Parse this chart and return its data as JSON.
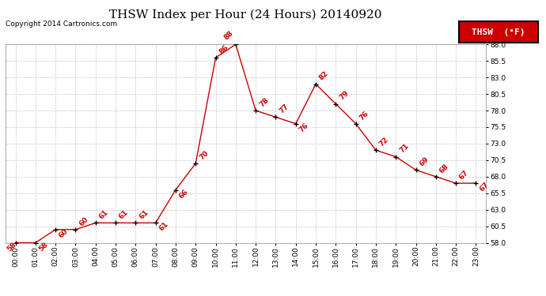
{
  "title": "THSW Index per Hour (24 Hours) 20140920",
  "copyright": "Copyright 2014 Cartronics.com",
  "legend_label": "THSW  (°F)",
  "hours": [
    0,
    1,
    2,
    3,
    4,
    5,
    6,
    7,
    8,
    9,
    10,
    11,
    12,
    13,
    14,
    15,
    16,
    17,
    18,
    19,
    20,
    21,
    22,
    23
  ],
  "values": [
    58,
    58,
    60,
    60,
    61,
    61,
    61,
    61,
    66,
    70,
    86,
    88,
    78,
    77,
    76,
    82,
    79,
    76,
    72,
    71,
    69,
    68,
    67,
    67
  ],
  "ylim_min": 58.0,
  "ylim_max": 88.0,
  "yticks": [
    58.0,
    60.5,
    63.0,
    65.5,
    68.0,
    70.5,
    73.0,
    75.5,
    78.0,
    80.5,
    83.0,
    85.5,
    88.0
  ],
  "line_color": "#cc0000",
  "marker_color": "#000000",
  "bg_color": "#ffffff",
  "grid_color": "#c8c8c8",
  "title_fontsize": 11,
  "copyright_fontsize": 6.5,
  "label_fontsize": 6.5,
  "tick_fontsize": 6.5,
  "legend_fontsize": 8
}
